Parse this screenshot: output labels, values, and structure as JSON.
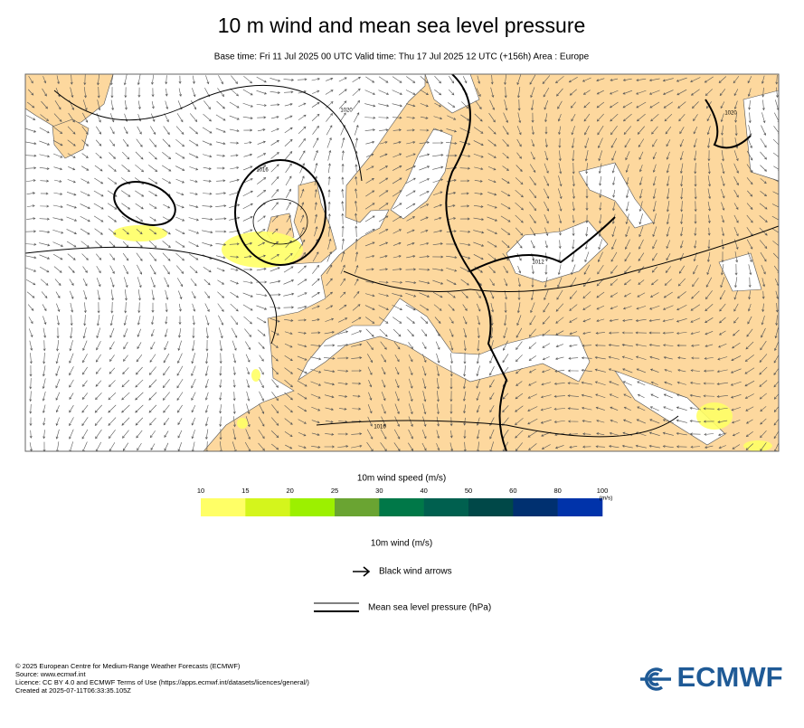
{
  "title": "10 m wind and mean sea level pressure",
  "subtitle": "Base time: Fri 11 Jul 2025 00 UTC Valid time: Thu 17 Jul 2025 12 UTC (+156h) Area : Europe",
  "map": {
    "isobar_labels": [
      "1020",
      "1016",
      "1012",
      "1016",
      "1020"
    ]
  },
  "colorbar": {
    "title": "10m wind speed (m/s)",
    "ticks": [
      10,
      15,
      20,
      25,
      30,
      40,
      50,
      60,
      80,
      100
    ],
    "unit": "(m/s)",
    "colors": [
      "#ffff66",
      "#d4f51c",
      "#9cf000",
      "#6aa432",
      "#007848",
      "#00604f",
      "#004848",
      "#003070",
      "#0033aa"
    ]
  },
  "legend": {
    "title": "10m wind (m/s)",
    "arrows": "Black wind arrows",
    "pressure": "Mean sea level pressure (hPa)"
  },
  "footer": [
    "© 2025 European Centre for Medium-Range Weather Forecasts (ECMWF)",
    "Source: www.ecmwf.int",
    "Licence: CC BY 4.0 and ECMWF Terms of Use (https://apps.ecmwf.int/datasets/licences/general/)",
    "Created at 2025-07-11T06:33:35.105Z"
  ],
  "logo": "ECMWF"
}
